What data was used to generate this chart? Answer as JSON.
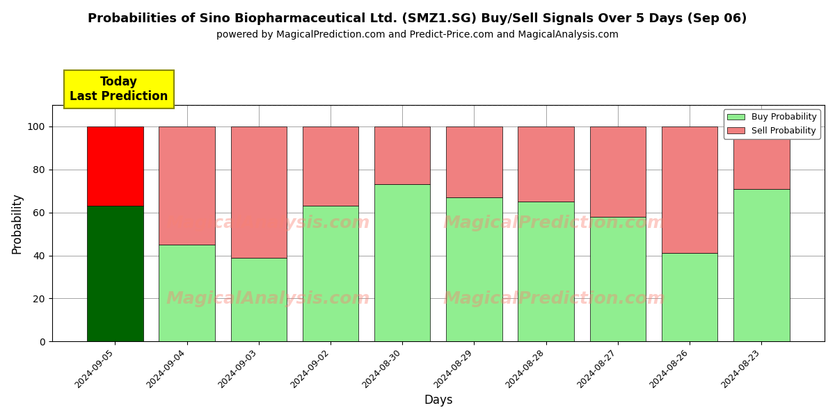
{
  "title": "Probabilities of Sino Biopharmaceutical Ltd. (SMZ1.SG) Buy/Sell Signals Over 5 Days (Sep 06)",
  "subtitle": "powered by MagicalPrediction.com and Predict-Price.com and MagicalAnalysis.com",
  "xlabel": "Days",
  "ylabel": "Probability",
  "categories": [
    "2024-09-05",
    "2024-09-04",
    "2024-09-03",
    "2024-09-02",
    "2024-08-30",
    "2024-08-29",
    "2024-08-28",
    "2024-08-27",
    "2024-08-26",
    "2024-08-23"
  ],
  "buy_values": [
    63,
    45,
    39,
    63,
    73,
    67,
    65,
    58,
    41,
    71
  ],
  "sell_values": [
    37,
    55,
    61,
    37,
    27,
    33,
    35,
    42,
    59,
    29
  ],
  "today_buy_color": "#006400",
  "today_sell_color": "#FF0000",
  "buy_color": "#90EE90",
  "sell_color": "#F08080",
  "today_index": 0,
  "annotation_text": "Today\nLast Prediction",
  "annotation_bg": "#FFFF00",
  "ylim": [
    0,
    110
  ],
  "dashed_line_y": 110,
  "legend_buy_label": "Buy Probability",
  "legend_sell_label": "Sell Probability",
  "title_fontsize": 13,
  "subtitle_fontsize": 10,
  "axis_label_fontsize": 12
}
